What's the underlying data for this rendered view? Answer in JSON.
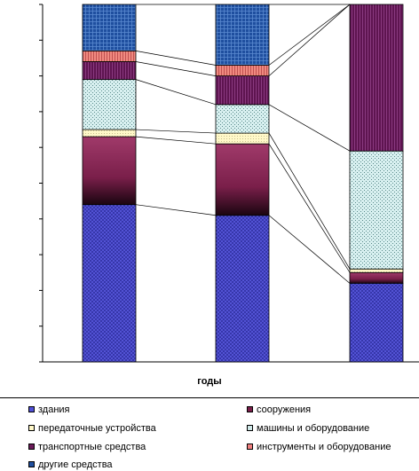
{
  "chart_data": {
    "type": "bar",
    "stacked": true,
    "normalized": true,
    "xlabel": "годы",
    "ylabel": "",
    "ylim": [
      0,
      100
    ],
    "categories": [
      "",
      "",
      ""
    ],
    "series": [
      {
        "name": "здания",
        "color": "#5050d8",
        "values": [
          44,
          41,
          22
        ]
      },
      {
        "name": "сооружения",
        "color": "#7a1f4a",
        "values": [
          19,
          20,
          3
        ]
      },
      {
        "name": "передаточные устройства",
        "color": "#fff8c8",
        "values": [
          2,
          3,
          1
        ]
      },
      {
        "name": "машины и оборудование",
        "color": "#cfe7e7",
        "values": [
          14,
          8,
          33
        ]
      },
      {
        "name": "транспортные средства",
        "color": "#6b1a5a",
        "values": [
          5,
          8,
          41
        ]
      },
      {
        "name": "инструменты и оборудование",
        "color": "#f08080",
        "values": [
          3,
          3,
          0
        ]
      },
      {
        "name": "другие средства",
        "color": "#1f4f9f",
        "values": [
          13,
          17,
          0
        ]
      }
    ],
    "grid": false,
    "legend_position": "bottom"
  }
}
